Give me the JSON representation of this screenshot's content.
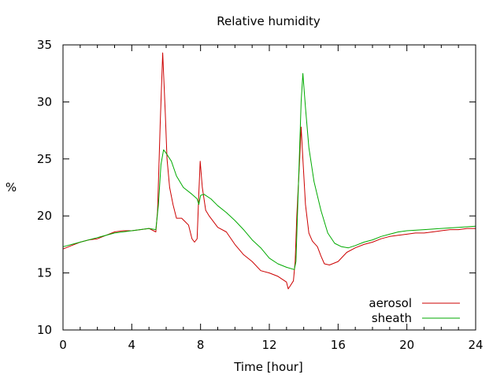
{
  "chart_data": {
    "type": "line",
    "title": "Relative humidity",
    "xlabel": "Time [hour]",
    "ylabel": "%",
    "xlim": [
      0,
      24
    ],
    "ylim": [
      10,
      35
    ],
    "x_ticks": [
      0,
      4,
      8,
      12,
      16,
      20,
      24
    ],
    "y_ticks": [
      10,
      15,
      20,
      25,
      30,
      35
    ],
    "grid": false,
    "legend_position": "bottom-right",
    "series": [
      {
        "name": "aerosol",
        "color": "#cc0000",
        "points": [
          [
            0,
            17.1
          ],
          [
            0.5,
            17.4
          ],
          [
            1,
            17.7
          ],
          [
            1.5,
            17.9
          ],
          [
            2,
            18.0
          ],
          [
            2.5,
            18.3
          ],
          [
            3,
            18.6
          ],
          [
            3.5,
            18.7
          ],
          [
            4,
            18.7
          ],
          [
            4.5,
            18.8
          ],
          [
            5,
            18.9
          ],
          [
            5.4,
            18.6
          ],
          [
            5.5,
            20.5
          ],
          [
            5.65,
            28.0
          ],
          [
            5.8,
            34.3
          ],
          [
            5.95,
            29.0
          ],
          [
            6.05,
            25.0
          ],
          [
            6.2,
            22.5
          ],
          [
            6.4,
            21.0
          ],
          [
            6.6,
            19.8
          ],
          [
            6.9,
            19.8
          ],
          [
            7.1,
            19.5
          ],
          [
            7.3,
            19.2
          ],
          [
            7.5,
            18.0
          ],
          [
            7.65,
            17.7
          ],
          [
            7.8,
            18.0
          ],
          [
            7.9,
            22.0
          ],
          [
            7.98,
            24.8
          ],
          [
            8.1,
            22.5
          ],
          [
            8.3,
            20.5
          ],
          [
            8.5,
            20.0
          ],
          [
            9,
            19.0
          ],
          [
            9.5,
            18.6
          ],
          [
            10,
            17.5
          ],
          [
            10.5,
            16.6
          ],
          [
            11,
            16.0
          ],
          [
            11.5,
            15.2
          ],
          [
            12,
            15.0
          ],
          [
            12.5,
            14.7
          ],
          [
            13,
            14.2
          ],
          [
            13.1,
            13.6
          ],
          [
            13.4,
            14.3
          ],
          [
            13.5,
            16.0
          ],
          [
            13.6,
            20.0
          ],
          [
            13.75,
            24.5
          ],
          [
            13.85,
            27.8
          ],
          [
            13.95,
            25.0
          ],
          [
            14.1,
            21.0
          ],
          [
            14.3,
            18.5
          ],
          [
            14.5,
            17.8
          ],
          [
            14.8,
            17.3
          ],
          [
            15.0,
            16.5
          ],
          [
            15.2,
            15.8
          ],
          [
            15.5,
            15.7
          ],
          [
            16,
            16.0
          ],
          [
            16.5,
            16.8
          ],
          [
            17,
            17.2
          ],
          [
            17.5,
            17.5
          ],
          [
            18,
            17.7
          ],
          [
            18.5,
            18.0
          ],
          [
            19,
            18.2
          ],
          [
            19.5,
            18.3
          ],
          [
            20,
            18.4
          ],
          [
            20.5,
            18.5
          ],
          [
            21,
            18.5
          ],
          [
            21.5,
            18.6
          ],
          [
            22,
            18.7
          ],
          [
            22.5,
            18.8
          ],
          [
            23,
            18.8
          ],
          [
            23.5,
            18.9
          ],
          [
            24,
            18.9
          ]
        ]
      },
      {
        "name": "sheath",
        "color": "#00aa00",
        "points": [
          [
            0,
            17.3
          ],
          [
            1,
            17.7
          ],
          [
            2,
            18.1
          ],
          [
            3,
            18.5
          ],
          [
            4,
            18.7
          ],
          [
            5,
            18.9
          ],
          [
            5.4,
            18.8
          ],
          [
            5.55,
            21.0
          ],
          [
            5.7,
            24.5
          ],
          [
            5.85,
            25.8
          ],
          [
            6.0,
            25.5
          ],
          [
            6.3,
            24.8
          ],
          [
            6.6,
            23.5
          ],
          [
            7,
            22.5
          ],
          [
            7.5,
            21.9
          ],
          [
            7.8,
            21.5
          ],
          [
            7.9,
            21.0
          ],
          [
            8.0,
            21.8
          ],
          [
            8.2,
            21.9
          ],
          [
            8.6,
            21.5
          ],
          [
            9,
            20.9
          ],
          [
            9.5,
            20.3
          ],
          [
            10,
            19.6
          ],
          [
            10.5,
            18.8
          ],
          [
            11,
            17.9
          ],
          [
            11.5,
            17.2
          ],
          [
            12,
            16.3
          ],
          [
            12.5,
            15.8
          ],
          [
            13,
            15.5
          ],
          [
            13.45,
            15.3
          ],
          [
            13.55,
            16.0
          ],
          [
            13.7,
            23.0
          ],
          [
            13.85,
            30.0
          ],
          [
            13.95,
            32.5
          ],
          [
            14.1,
            29.5
          ],
          [
            14.3,
            26.0
          ],
          [
            14.6,
            23.0
          ],
          [
            15.0,
            20.5
          ],
          [
            15.4,
            18.5
          ],
          [
            15.8,
            17.6
          ],
          [
            16.2,
            17.3
          ],
          [
            16.6,
            17.2
          ],
          [
            17,
            17.4
          ],
          [
            17.5,
            17.7
          ],
          [
            18,
            17.9
          ],
          [
            18.5,
            18.2
          ],
          [
            19,
            18.4
          ],
          [
            19.5,
            18.6
          ],
          [
            20,
            18.7
          ],
          [
            21,
            18.8
          ],
          [
            22,
            18.9
          ],
          [
            23,
            19.0
          ],
          [
            24,
            19.1
          ]
        ]
      }
    ]
  }
}
